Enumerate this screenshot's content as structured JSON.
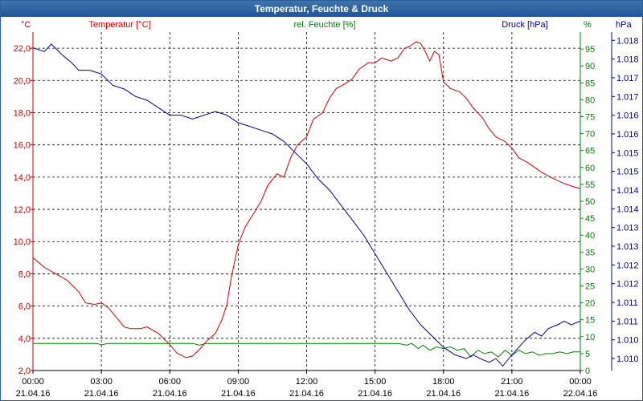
{
  "window": {
    "title": "Temperatur, Feuchte & Druck"
  },
  "chart_data": {
    "type": "line",
    "title": "Temperatur, Feuchte & Druck",
    "colors": {
      "temp": "#cc0000",
      "hum": "#008000",
      "press": "#00008b",
      "grid": "#000000",
      "frame": "#1f5591"
    },
    "xlim": [
      0,
      24
    ],
    "x_ticks": [
      {
        "h": 0,
        "time": "00:00",
        "date": "21.04.16"
      },
      {
        "h": 3,
        "time": "03:00",
        "date": "21.04.16"
      },
      {
        "h": 6,
        "time": "06:00",
        "date": "21.04.16"
      },
      {
        "h": 9,
        "time": "09:00",
        "date": "21.04.16"
      },
      {
        "h": 12,
        "time": "12:00",
        "date": "21.04.16"
      },
      {
        "h": 15,
        "time": "15:00",
        "date": "21.04.16"
      },
      {
        "h": 18,
        "time": "18:00",
        "date": "21.04.16"
      },
      {
        "h": 21,
        "time": "21:00",
        "date": "21.04.16"
      },
      {
        "h": 24,
        "time": "00:00",
        "date": "22.04.16"
      }
    ],
    "temperature": {
      "label": "Temperatur [°C]",
      "unit": "°C",
      "ylim": [
        2,
        23
      ],
      "ticks": [
        {
          "v": 2,
          "label": "2,0"
        },
        {
          "v": 4,
          "label": "4,0"
        },
        {
          "v": 6,
          "label": "6,0"
        },
        {
          "v": 8,
          "label": "8,0"
        },
        {
          "v": 10,
          "label": "10,0"
        },
        {
          "v": 12,
          "label": "12,0"
        },
        {
          "v": 14,
          "label": "14,0"
        },
        {
          "v": 16,
          "label": "16,0"
        },
        {
          "v": 18,
          "label": "18,0"
        },
        {
          "v": 20,
          "label": "20,0"
        },
        {
          "v": 22,
          "label": "22,0"
        }
      ],
      "x": [
        0,
        0.5,
        1,
        1.5,
        2,
        2.3,
        2.7,
        3,
        3.3,
        3.6,
        4,
        4.3,
        4.7,
        5,
        5.5,
        6,
        6.3,
        6.7,
        7,
        7.3,
        7.6,
        8,
        8.3,
        8.5,
        8.7,
        9,
        9.3,
        9.7,
        10,
        10.3,
        10.7,
        11,
        11.3,
        11.6,
        12,
        12.3,
        12.7,
        13,
        13.3,
        13.7,
        14,
        14.3,
        14.7,
        15,
        15.3,
        15.7,
        16,
        16.3,
        16.5,
        16.8,
        17,
        17.2,
        17.4,
        17.6,
        17.8,
        18,
        18.3,
        18.7,
        19,
        19.3,
        19.7,
        20,
        20.3,
        20.7,
        21,
        21.3,
        21.7,
        22,
        22.3,
        22.7,
        23,
        23.3,
        23.7,
        24
      ],
      "values": [
        9.0,
        8.4,
        8.0,
        7.6,
        6.9,
        6.2,
        6.1,
        6.2,
        5.9,
        5.4,
        4.7,
        4.6,
        4.6,
        4.7,
        4.3,
        3.6,
        3.1,
        2.8,
        2.9,
        3.3,
        3.8,
        4.3,
        5.2,
        6.1,
        7.8,
        9.8,
        10.9,
        11.8,
        12.5,
        13.5,
        14.2,
        14.0,
        15.2,
        16.0,
        16.5,
        17.6,
        18.0,
        18.9,
        19.5,
        19.8,
        20.1,
        20.7,
        21.1,
        21.1,
        21.4,
        21.2,
        21.4,
        22.0,
        22.1,
        22.4,
        22.3,
        21.8,
        21.2,
        21.8,
        21.6,
        19.9,
        19.5,
        19.3,
        18.9,
        18.3,
        17.7,
        17.0,
        16.5,
        16.2,
        15.8,
        15.2,
        14.9,
        14.6,
        14.3,
        14.0,
        13.8,
        13.6,
        13.4,
        13.3
      ]
    },
    "humidity": {
      "label": "rel. Feuchte [%]",
      "unit": "%",
      "ylim": [
        0,
        100
      ],
      "ticks": [
        {
          "v": 0,
          "label": "0"
        },
        {
          "v": 5,
          "label": "5"
        },
        {
          "v": 10,
          "label": "10"
        },
        {
          "v": 15,
          "label": "15"
        },
        {
          "v": 20,
          "label": "20"
        },
        {
          "v": 25,
          "label": "25"
        },
        {
          "v": 30,
          "label": "30"
        },
        {
          "v": 35,
          "label": "35"
        },
        {
          "v": 40,
          "label": "40"
        },
        {
          "v": 45,
          "label": "45"
        },
        {
          "v": 50,
          "label": "50"
        },
        {
          "v": 55,
          "label": "55"
        },
        {
          "v": 60,
          "label": "60"
        },
        {
          "v": 65,
          "label": "65"
        },
        {
          "v": 70,
          "label": "70"
        },
        {
          "v": 75,
          "label": "75"
        },
        {
          "v": 80,
          "label": "80"
        },
        {
          "v": 85,
          "label": "85"
        },
        {
          "v": 90,
          "label": "90"
        },
        {
          "v": 95,
          "label": "95"
        }
      ],
      "x": [
        0,
        1,
        2,
        2.8,
        3,
        3.3,
        4,
        5,
        6,
        7,
        7.3,
        7.6,
        8,
        9,
        10,
        11,
        12,
        13,
        14,
        15,
        16,
        16.4,
        16.6,
        16.9,
        17.1,
        17.4,
        17.7,
        18,
        18.3,
        18.6,
        18.9,
        19.2,
        19.5,
        19.8,
        20.1,
        20.4,
        20.7,
        21,
        21.3,
        21.6,
        21.9,
        22.2,
        22.5,
        22.8,
        23.1,
        23.4,
        23.7,
        24
      ],
      "values": [
        8,
        8,
        8,
        8,
        7.6,
        8,
        8,
        8,
        8,
        8,
        7.5,
        8,
        8,
        8,
        8,
        8,
        8,
        8,
        8,
        8,
        8,
        7.5,
        8,
        6.5,
        7.5,
        6,
        7,
        6.5,
        7,
        6,
        6.5,
        4,
        6,
        5,
        5.5,
        4,
        6,
        4.5,
        6,
        5,
        5.5,
        4.5,
        5,
        5,
        5.5,
        5,
        5.5,
        5.5
      ]
    },
    "pressure": {
      "label": "Druck [hPa]",
      "unit": "hPa",
      "ylim": [
        1009.68,
        1018.72
      ],
      "ticks": [
        {
          "v": 1010.0,
          "label": "1.010"
        },
        {
          "v": 1010.5,
          "label": "1.010"
        },
        {
          "v": 1011.0,
          "label": "1.011"
        },
        {
          "v": 1011.5,
          "label": "1.011"
        },
        {
          "v": 1012.0,
          "label": "1.012"
        },
        {
          "v": 1012.5,
          "label": "1.012"
        },
        {
          "v": 1013.0,
          "label": "1.013"
        },
        {
          "v": 1013.5,
          "label": "1.013"
        },
        {
          "v": 1014.0,
          "label": "1.014"
        },
        {
          "v": 1014.5,
          "label": "1.014"
        },
        {
          "v": 1015.0,
          "label": "1.015"
        },
        {
          "v": 1015.5,
          "label": "1.015"
        },
        {
          "v": 1016.0,
          "label": "1.016"
        },
        {
          "v": 1016.5,
          "label": "1.016"
        },
        {
          "v": 1017.0,
          "label": "1.017"
        },
        {
          "v": 1017.5,
          "label": "1.017"
        },
        {
          "v": 1018.0,
          "label": "1.018"
        },
        {
          "v": 1018.5,
          "label": "1.018"
        }
      ],
      "x": [
        0,
        0.5,
        0.8,
        1.3,
        1.7,
        2,
        2.5,
        3,
        3.5,
        4,
        4.5,
        5,
        5.5,
        6,
        6.5,
        7,
        7.5,
        8,
        8.5,
        9,
        9.5,
        10,
        10.5,
        11,
        11.5,
        12,
        12.5,
        13,
        13.5,
        14,
        14.5,
        15,
        15.5,
        16,
        16.5,
        17,
        17.5,
        18,
        18.5,
        19,
        19.3,
        19.6,
        20,
        20.3,
        20.6,
        21,
        21.3,
        21.6,
        22,
        22.3,
        22.6,
        23,
        23.3,
        23.6,
        24
      ],
      "values": [
        1018.3,
        1018.2,
        1018.4,
        1018.1,
        1017.9,
        1017.7,
        1017.7,
        1017.6,
        1017.3,
        1017.2,
        1017.0,
        1016.9,
        1016.7,
        1016.5,
        1016.5,
        1016.4,
        1016.5,
        1016.6,
        1016.5,
        1016.3,
        1016.2,
        1016.1,
        1016.0,
        1015.8,
        1015.5,
        1015.2,
        1014.8,
        1014.5,
        1014.1,
        1013.7,
        1013.3,
        1012.8,
        1012.3,
        1011.8,
        1011.3,
        1010.9,
        1010.6,
        1010.3,
        1010.1,
        1010.0,
        1010.1,
        1010.0,
        1009.9,
        1010.0,
        1009.8,
        1010.1,
        1010.3,
        1010.5,
        1010.7,
        1010.6,
        1010.8,
        1010.9,
        1011.0,
        1010.9,
        1011.0
      ]
    }
  }
}
